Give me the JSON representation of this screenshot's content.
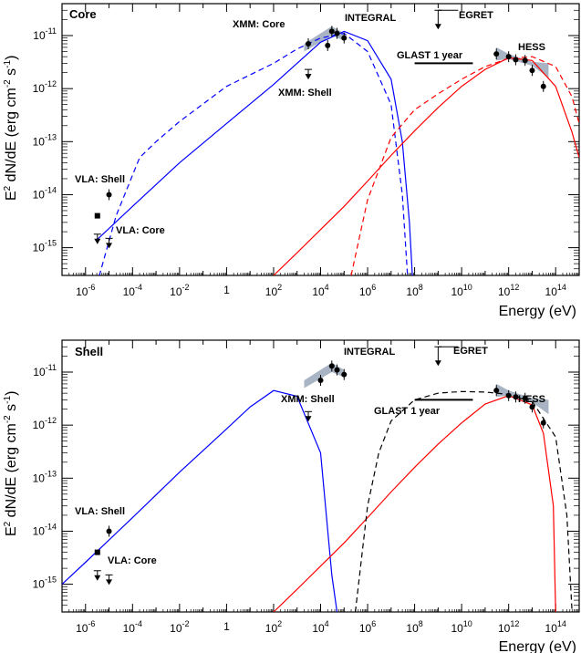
{
  "figure": {
    "xlabel": "Energy (eV)",
    "ylabel_main": "E",
    "ylabel_exp": "2",
    "ylabel_rest": " dN/dE (erg cm",
    "ylabel_unit_exp": "-2",
    "ylabel_unit_rest": " s",
    "ylabel_unit_exp2": "-1",
    "ylabel_close": ")"
  },
  "colors": {
    "blue": "#0000ff",
    "red": "#ff0000",
    "black": "#000000",
    "band": "#a8b4c4"
  },
  "chart_data": [
    {
      "type": "line",
      "title": "Core",
      "x_scale": "log",
      "y_scale": "log",
      "xlim": [
        1e-07,
        1000000000000000.0
      ],
      "ylim": [
        3e-16,
        4e-11
      ],
      "x_tick_labels": [
        "10^-6",
        "10^-4",
        "10^-2",
        "1",
        "10^2",
        "10^4",
        "10^6",
        "10^8",
        "10^10",
        "10^12",
        "10^14"
      ],
      "y_tick_labels": [
        "10^-15",
        "10^-14",
        "10^-13",
        "10^-12",
        "10^-11"
      ],
      "annotations": [
        "XMM: Core",
        "INTEGRAL",
        "EGRET",
        "GLAST 1 year",
        "HESS",
        "XMM: Shell",
        "VLA: Shell",
        "VLA: Core"
      ],
      "series": [
        {
          "color": "blue",
          "dash": false,
          "points": [
            [
              3e-06,
              1.4e-15
            ],
            [
              0.0001,
              6e-15
            ],
            [
              0.01,
              4e-14
            ],
            [
              1,
              2.2e-13
            ],
            [
              100.0,
              1.2e-12
            ],
            [
              1000.0,
              3e-12
            ],
            [
              10000.0,
              7.5e-12
            ],
            [
              100000.0,
              1.2e-11
            ],
            [
              1000000.0,
              8e-12
            ],
            [
              10000000.0,
              1.5e-12
            ],
            [
              30000000.0,
              1e-13
            ],
            [
              60000000.0,
              3e-15
            ],
            [
              80000000.0,
              3e-16
            ]
          ]
        },
        {
          "color": "blue",
          "dash": true,
          "points": [
            [
              3e-06,
              2e-16
            ],
            [
              2e-05,
              4e-15
            ],
            [
              0.0002,
              5e-14
            ],
            [
              0.001,
              1e-13
            ],
            [
              0.01,
              2.4e-13
            ],
            [
              1,
              1.1e-12
            ],
            [
              100.0,
              3e-12
            ],
            [
              1000.0,
              5.6e-12
            ],
            [
              10000.0,
              9e-12
            ],
            [
              100000.0,
              1.1e-11
            ],
            [
              1000000.0,
              5e-12
            ],
            [
              10000000.0,
              5e-13
            ],
            [
              30000000.0,
              1e-14
            ],
            [
              50000000.0,
              3e-16
            ]
          ]
        },
        {
          "color": "red",
          "dash": false,
          "points": [
            [
              100.0,
              3e-16
            ],
            [
              1000.0,
              8e-16
            ],
            [
              10000.0,
              2.2e-15
            ],
            [
              100000.0,
              6e-15
            ],
            [
              1000000.0,
              1.8e-14
            ],
            [
              10000000.0,
              5.5e-14
            ],
            [
              100000000.0,
              1.6e-13
            ],
            [
              1000000000.0,
              4.4e-13
            ],
            [
              10000000000.0,
              1.1e-12
            ],
            [
              100000000000.0,
              2.3e-12
            ],
            [
              1000000000000.0,
              3.8e-12
            ],
            [
              10000000000000.0,
              3.4e-12
            ],
            [
              100000000000000.0,
              1.1e-12
            ],
            [
              500000000000000.0,
              1.5e-13
            ],
            [
              1000000000000000.0,
              5e-14
            ]
          ]
        },
        {
          "color": "red",
          "dash": true,
          "points": [
            [
              200000.0,
              3e-16
            ],
            [
              1000000.0,
              8e-15
            ],
            [
              10000000.0,
              1.2e-13
            ],
            [
              100000000.0,
              4e-13
            ],
            [
              1000000000.0,
              8e-13
            ],
            [
              10000000000.0,
              1.5e-12
            ],
            [
              100000000000.0,
              2.6e-12
            ],
            [
              1000000000000.0,
              3.7e-12
            ],
            [
              10000000000000.0,
              4e-12
            ],
            [
              100000000000000.0,
              2.6e-12
            ],
            [
              500000000000000.0,
              7e-13
            ],
            [
              1000000000000000.0,
              2.2e-13
            ]
          ]
        }
      ],
      "points": [
        {
          "x": 1e-05,
          "y": 1e-14,
          "marker": "circle"
        },
        {
          "x": 3.2e-06,
          "y": 4e-15,
          "marker": "square"
        },
        {
          "x": 3000.0,
          "y": 7e-12,
          "marker": "circle"
        },
        {
          "x": 20000.0,
          "y": 6.5e-12,
          "marker": "circle"
        },
        {
          "x": 30000.0,
          "y": 1.2e-11,
          "marker": "circle"
        },
        {
          "x": 50000.0,
          "y": 1.1e-11,
          "marker": "circle"
        },
        {
          "x": 100000.0,
          "y": 9e-12,
          "marker": "circle"
        },
        {
          "x": 300000000000.0,
          "y": 4.5e-12,
          "marker": "circle"
        },
        {
          "x": 1000000000000.0,
          "y": 4e-12,
          "marker": "circle"
        },
        {
          "x": 2000000000000.0,
          "y": 3.5e-12,
          "marker": "circle"
        },
        {
          "x": 5000000000000.0,
          "y": 3.4e-12,
          "marker": "circle"
        },
        {
          "x": 10000000000000.0,
          "y": 2.2e-12,
          "marker": "circle"
        },
        {
          "x": 30000000000000.0,
          "y": 1.1e-12,
          "marker": "circle"
        }
      ],
      "upper_limits": [
        {
          "x": 3.2e-06,
          "y": 1.8e-15
        },
        {
          "x": 1e-05,
          "y": 1.5e-15
        },
        {
          "x": 3000.0,
          "y": 2.3e-12
        },
        {
          "x": 1000000000.0,
          "y": 3e-11
        }
      ]
    },
    {
      "type": "line",
      "title": "Shell",
      "x_scale": "log",
      "y_scale": "log",
      "xlim": [
        1e-07,
        1000000000000000.0
      ],
      "ylim": [
        3e-16,
        4e-11
      ],
      "x_tick_labels": [
        "10^-6",
        "10^-4",
        "10^-2",
        "1",
        "10^2",
        "10^4",
        "10^6",
        "10^8",
        "10^10",
        "10^12",
        "10^14"
      ],
      "y_tick_labels": [
        "10^-15",
        "10^-14",
        "10^-13",
        "10^-12",
        "10^-11"
      ],
      "annotations": [
        "INTEGRAL",
        "EGRET",
        "XMM: Shell",
        "HESS",
        "GLAST 1 year",
        "VLA: Shell",
        "VLA: Core"
      ],
      "series": [
        {
          "color": "blue",
          "dash": false,
          "points": [
            [
              1e-07,
              1e-15
            ],
            [
              1e-06,
              2.6e-15
            ],
            [
              0.0001,
              1.8e-14
            ],
            [
              0.01,
              1.3e-13
            ],
            [
              1,
              8.5e-13
            ],
            [
              10,
              2.2e-12
            ],
            [
              100.0,
              4.5e-12
            ],
            [
              1000.0,
              3.5e-12
            ],
            [
              10000.0,
              3e-13
            ],
            [
              30000.0,
              1.5e-15
            ],
            [
              50000.0,
              3e-16
            ]
          ]
        },
        {
          "color": "red",
          "dash": false,
          "points": [
            [
              100.0,
              3e-16
            ],
            [
              1000.0,
              8e-16
            ],
            [
              10000.0,
              2.2e-15
            ],
            [
              100000.0,
              6e-15
            ],
            [
              1000000.0,
              1.8e-14
            ],
            [
              10000000.0,
              5.5e-14
            ],
            [
              100000000.0,
              1.6e-13
            ],
            [
              1000000000.0,
              4.4e-13
            ],
            [
              10000000000.0,
              1.1e-12
            ],
            [
              100000000000.0,
              2.5e-12
            ],
            [
              1000000000000.0,
              3.6e-12
            ],
            [
              10000000000000.0,
              2.4e-12
            ],
            [
              30000000000000.0,
              7e-13
            ],
            [
              80000000000000.0,
              3e-14
            ],
            [
              100000000000000.0,
              3e-16
            ]
          ]
        },
        {
          "color": "black",
          "dash": true,
          "points": [
            [
              300000.0,
              3e-16
            ],
            [
              1000000.0,
              3e-14
            ],
            [
              3000000.0,
              3e-13
            ],
            [
              10000000.0,
              1.2e-12
            ],
            [
              100000000.0,
              3e-12
            ],
            [
              1000000000.0,
              4e-12
            ],
            [
              10000000000.0,
              4.3e-12
            ],
            [
              100000000000.0,
              4.2e-12
            ],
            [
              1000000000000.0,
              3.8e-12
            ],
            [
              10000000000000.0,
              2.8e-12
            ],
            [
              100000000000000.0,
              6e-13
            ],
            [
              300000000000000.0,
              2e-14
            ],
            [
              500000000000000.0,
              3e-16
            ]
          ]
        }
      ],
      "points": [
        {
          "x": 1e-05,
          "y": 1e-14,
          "marker": "circle"
        },
        {
          "x": 3.2e-06,
          "y": 4e-15,
          "marker": "square"
        },
        {
          "x": 10000.0,
          "y": 7e-12,
          "marker": "circle"
        },
        {
          "x": 30000.0,
          "y": 1.3e-11,
          "marker": "circle"
        },
        {
          "x": 50000.0,
          "y": 1.1e-11,
          "marker": "circle"
        },
        {
          "x": 100000.0,
          "y": 9e-12,
          "marker": "circle"
        },
        {
          "x": 300000000000.0,
          "y": 4.5e-12,
          "marker": "circle"
        },
        {
          "x": 1000000000000.0,
          "y": 3.6e-12,
          "marker": "circle"
        },
        {
          "x": 2000000000000.0,
          "y": 3.4e-12,
          "marker": "circle"
        },
        {
          "x": 5000000000000.0,
          "y": 3.2e-12,
          "marker": "circle"
        },
        {
          "x": 10000000000000.0,
          "y": 2.2e-12,
          "marker": "circle"
        },
        {
          "x": 30000000000000.0,
          "y": 1.1e-12,
          "marker": "circle"
        }
      ],
      "upper_limits": [
        {
          "x": 3.2e-06,
          "y": 1.8e-15
        },
        {
          "x": 1e-05,
          "y": 1.5e-15
        },
        {
          "x": 3000.0,
          "y": 1.8e-12
        },
        {
          "x": 1000000000.0,
          "y": 3e-11
        }
      ]
    }
  ]
}
